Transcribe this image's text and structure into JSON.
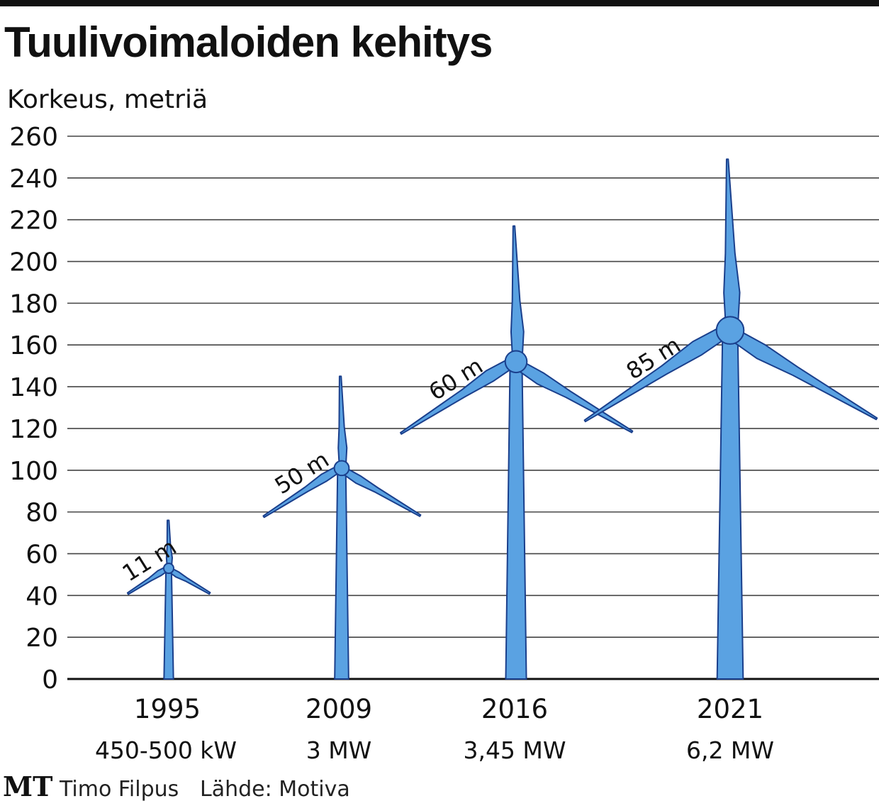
{
  "chart_data": {
    "type": "pictogram-bar",
    "title": "Tuulivoimaloiden kehitys",
    "ylabel": "Korkeus, metriä",
    "ylim": [
      0,
      260
    ],
    "yticks": [
      0,
      20,
      40,
      60,
      80,
      100,
      120,
      140,
      160,
      180,
      200,
      220,
      240,
      260
    ],
    "grid": true,
    "categories": [
      "1995",
      "2009",
      "2016",
      "2021"
    ],
    "power": [
      "450-500 kW",
      "3 MW",
      "3,45 MW",
      "6,2 MW"
    ],
    "hub_height": [
      53,
      101,
      152,
      167
    ],
    "tip_height": [
      76,
      145,
      217,
      249
    ],
    "rotor_labels": [
      "11 m",
      "50 m",
      "60 m",
      "85 m"
    ],
    "colors": {
      "fill": "#5aa2e2",
      "stroke": "#1a3f8c",
      "grid": "#444444"
    }
  },
  "footer": {
    "logo": "MT",
    "author": "Timo Filpus",
    "source": "Lähde: Motiva"
  }
}
